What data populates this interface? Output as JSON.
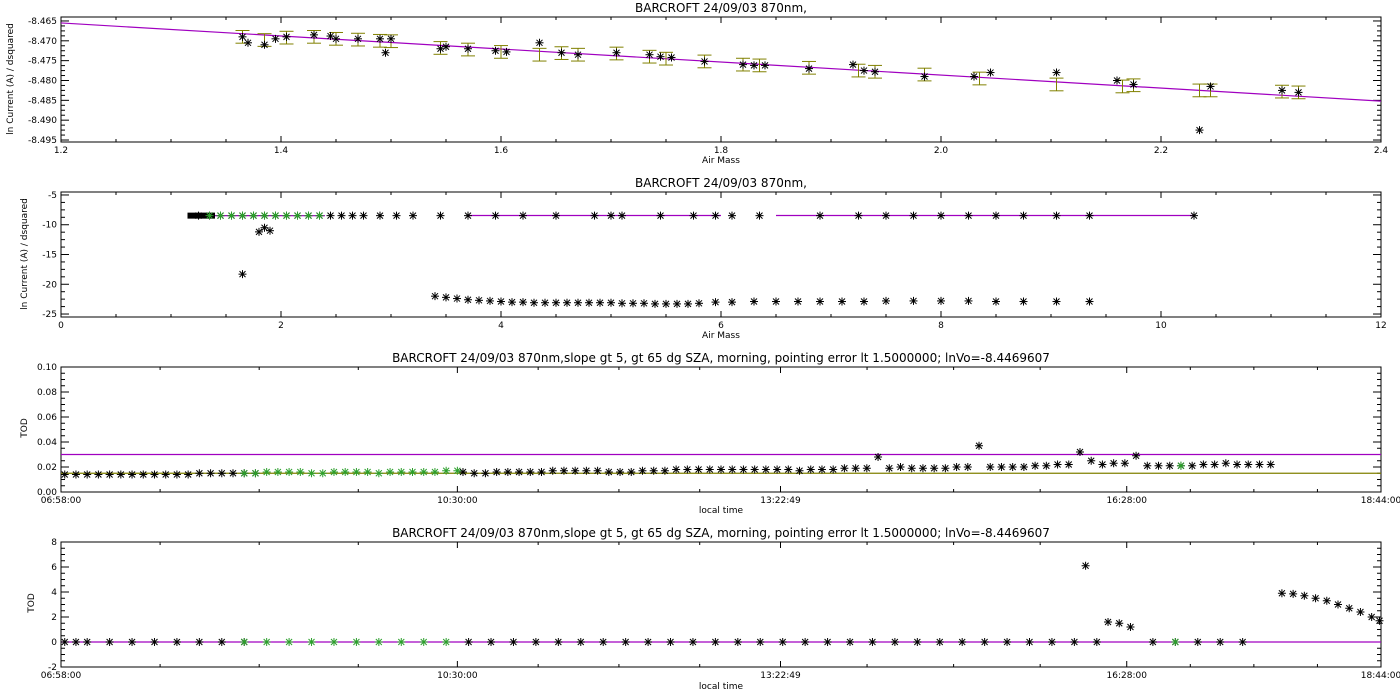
{
  "colors": {
    "fit_line": "#a000c0",
    "error_bars": "#808000",
    "markers": "#000000",
    "selected_markers": "#2ca02c",
    "clear_line": "#808000"
  },
  "chart_data": [
    {
      "type": "scatter",
      "title": "BARCROFT 24/09/03 870nm,",
      "xlabel": "Air Mass",
      "ylabel": "ln Current (A) / dsquared",
      "xlim": [
        1.2,
        2.4
      ],
      "ylim": [
        -8.4955,
        -8.464
      ],
      "xticks": [
        1.2,
        1.4,
        1.6,
        1.8,
        2.0,
        2.2,
        2.4
      ],
      "xtick_labels": [
        "1.2",
        "1.4",
        "1.6",
        "1.8",
        "2.0",
        "2.2",
        "2.4"
      ],
      "yticks": [
        -8.495,
        -8.49,
        -8.485,
        -8.48,
        -8.475,
        -8.47,
        -8.465
      ],
      "ytick_labels": [
        "-8.495",
        "-8.490",
        "-8.485",
        "-8.480",
        "-8.475",
        "-8.470",
        "-8.465"
      ],
      "fit_line": {
        "x": [
          1.2,
          2.4
        ],
        "y": [
          -8.4655,
          -8.4852
        ]
      },
      "error_bar_halfwidth": 0.0016,
      "points": {
        "x": [
          1.365,
          1.37,
          1.385,
          1.395,
          1.405,
          1.43,
          1.445,
          1.45,
          1.47,
          1.49,
          1.495,
          1.5,
          1.545,
          1.55,
          1.57,
          1.595,
          1.605,
          1.635,
          1.655,
          1.67,
          1.705,
          1.735,
          1.745,
          1.755,
          1.785,
          1.82,
          1.83,
          1.84,
          1.88,
          1.92,
          1.93,
          1.94,
          1.985,
          2.03,
          2.045,
          2.105,
          2.16,
          2.175,
          2.235,
          2.245,
          2.31,
          2.325
        ],
        "y": [
          -8.469,
          -8.4705,
          -8.471,
          -8.4695,
          -8.469,
          -8.4685,
          -8.4688,
          -8.4695,
          -8.4695,
          -8.4695,
          -8.473,
          -8.4695,
          -8.472,
          -8.4715,
          -8.472,
          -8.4725,
          -8.4728,
          -8.4705,
          -8.473,
          -8.4735,
          -8.473,
          -8.4735,
          -8.474,
          -8.4742,
          -8.4752,
          -8.476,
          -8.4762,
          -8.4762,
          -8.477,
          -8.476,
          -8.4775,
          -8.4778,
          -8.479,
          -8.479,
          -8.478,
          -8.478,
          -8.48,
          -8.481,
          -8.4925,
          -8.4815,
          -8.4825,
          -8.483
        ],
        "error_x": [
          1.365,
          1.385,
          1.405,
          1.43,
          1.45,
          1.47,
          1.49,
          1.5,
          1.545,
          1.57,
          1.6,
          1.635,
          1.655,
          1.67,
          1.705,
          1.735,
          1.75,
          1.785,
          1.82,
          1.835,
          1.88,
          1.925,
          1.94,
          1.985,
          2.035,
          2.105,
          2.165,
          2.175,
          2.235,
          2.245,
          2.31,
          2.325
        ],
        "error_y": [
          -8.469,
          -8.4698,
          -8.4692,
          -8.469,
          -8.4695,
          -8.4697,
          -8.47,
          -8.4701,
          -8.4718,
          -8.4722,
          -8.4728,
          -8.4735,
          -8.4731,
          -8.4735,
          -8.4732,
          -8.474,
          -8.4745,
          -8.4752,
          -8.476,
          -8.4762,
          -8.4768,
          -8.4775,
          -8.4778,
          -8.4785,
          -8.4795,
          -8.481,
          -8.4815,
          -8.4812,
          -8.4825,
          -8.4825,
          -8.4828,
          -8.483
        ]
      }
    },
    {
      "type": "scatter",
      "title": "BARCROFT 24/09/03 870nm,",
      "xlabel": "Air Mass",
      "ylabel": "ln Current (A) / dsquared",
      "xlim": [
        0,
        12
      ],
      "ylim": [
        -25.5,
        -4.5
      ],
      "xticks": [
        0,
        2,
        4,
        6,
        8,
        10,
        12
      ],
      "xtick_labels": [
        "0",
        "2",
        "4",
        "6",
        "8",
        "10",
        "12"
      ],
      "yticks": [
        -25,
        -20,
        -15,
        -10,
        -5
      ],
      "ytick_labels": [
        "-25",
        "-20",
        "-15",
        "-10",
        "-5"
      ],
      "fit_lines": [
        {
          "x": [
            1.2,
            2.4
          ],
          "y": [
            -8.47,
            -8.48
          ]
        },
        {
          "x": [
            3.7,
            6.0
          ],
          "y": [
            -8.45,
            -8.45
          ]
        },
        {
          "x": [
            6.5,
            10.3
          ],
          "y": [
            -8.45,
            -8.45
          ]
        }
      ],
      "upper_branch": {
        "x": [
          1.25,
          1.35,
          1.45,
          1.55,
          1.65,
          1.75,
          1.85,
          1.95,
          2.05,
          2.15,
          2.25,
          2.35,
          2.45,
          2.55,
          2.65,
          2.75,
          2.9,
          3.05,
          3.2,
          3.45,
          3.7,
          3.95,
          4.2,
          4.5,
          4.85,
          5.0,
          5.1,
          5.45,
          5.75,
          5.95,
          6.1,
          6.35,
          6.9,
          7.25,
          7.5,
          7.75,
          8.0,
          8.25,
          8.5,
          8.75,
          9.05,
          9.35,
          10.3
        ],
        "y": [
          -8.47,
          -8.47,
          -8.47,
          -8.47,
          -8.47,
          -8.47,
          -8.47,
          -8.47,
          -8.47,
          -8.47,
          -8.47,
          -8.47,
          -8.47,
          -8.47,
          -8.47,
          -8.47,
          -8.47,
          -8.47,
          -8.47,
          -8.47,
          -8.47,
          -8.47,
          -8.47,
          -8.47,
          -8.47,
          -8.47,
          -8.47,
          -8.47,
          -8.47,
          -8.47,
          -8.47,
          -8.47,
          -8.47,
          -8.47,
          -8.47,
          -8.47,
          -8.47,
          -8.47,
          -8.47,
          -8.47,
          -8.47,
          -8.47,
          -8.47
        ]
      },
      "green_points": {
        "x": [
          1.35,
          1.45,
          1.55,
          1.65,
          1.75,
          1.85,
          1.95,
          2.05,
          2.15,
          2.25,
          2.35
        ],
        "y": [
          -8.47,
          -8.47,
          -8.47,
          -8.47,
          -8.47,
          -8.47,
          -8.47,
          -8.47,
          -8.47,
          -8.47,
          -8.47
        ]
      },
      "outliers": {
        "x": [
          1.65,
          1.8,
          1.85,
          1.9
        ],
        "y": [
          -18.3,
          -11.2,
          -10.5,
          -11.0
        ]
      },
      "lower_branch": {
        "x": [
          3.4,
          3.5,
          3.6,
          3.7,
          3.8,
          3.9,
          4.0,
          4.1,
          4.2,
          4.3,
          4.4,
          4.5,
          4.6,
          4.7,
          4.8,
          4.9,
          5.0,
          5.1,
          5.2,
          5.3,
          5.4,
          5.5,
          5.6,
          5.7,
          5.8,
          5.95,
          6.1,
          6.3,
          6.5,
          6.7,
          6.9,
          7.1,
          7.3,
          7.5,
          7.75,
          8.0,
          8.25,
          8.5,
          8.75,
          9.05,
          9.35
        ],
        "y": [
          -22.0,
          -22.2,
          -22.4,
          -22.6,
          -22.7,
          -22.8,
          -22.9,
          -23.0,
          -23.0,
          -23.1,
          -23.1,
          -23.1,
          -23.1,
          -23.1,
          -23.1,
          -23.1,
          -23.1,
          -23.2,
          -23.2,
          -23.2,
          -23.3,
          -23.3,
          -23.3,
          -23.3,
          -23.2,
          -23.0,
          -23.0,
          -22.9,
          -22.9,
          -22.9,
          -22.9,
          -22.9,
          -22.9,
          -22.8,
          -22.8,
          -22.8,
          -22.8,
          -22.9,
          -22.9,
          -22.9,
          -22.9
        ]
      }
    },
    {
      "type": "scatter",
      "title": "BARCROFT 24/09/03 870nm,slope gt 5, gt 65 dg SZA, morning, pointing error lt 1.5000000; lnVo=-8.4469607",
      "xlabel": "local time",
      "ylabel": "TOD",
      "xlim": [
        6.9667,
        18.7333
      ],
      "ylim": [
        0,
        0.1
      ],
      "xticks": [
        6.9667,
        10.5,
        13.3803,
        16.4667,
        18.7333
      ],
      "xtick_labels": [
        "06:58:00",
        "10:30:00",
        "13:22:49",
        "16:28:00",
        "18:44:00"
      ],
      "yticks": [
        0.0,
        0.02,
        0.04,
        0.06,
        0.08,
        0.1
      ],
      "ytick_labels": [
        "0.00",
        "0.02",
        "0.04",
        "0.06",
        "0.08",
        "0.10"
      ],
      "hlines": [
        {
          "y": 0.03,
          "color_key": "fit_line"
        },
        {
          "y": 0.015,
          "color_key": "clear_line"
        }
      ],
      "black_points": {
        "x": [
          7.0,
          7.1,
          7.2,
          7.3,
          7.4,
          7.5,
          7.6,
          7.7,
          7.8,
          7.9,
          8.0,
          8.1,
          8.2,
          8.3,
          8.4,
          8.5,
          8.6,
          8.7,
          10.55,
          10.65,
          10.75,
          10.85,
          10.95,
          11.05,
          11.15,
          11.25,
          11.35,
          11.45,
          11.55,
          11.65,
          11.75,
          11.85,
          11.95,
          12.05,
          12.15,
          12.25,
          12.35,
          12.45,
          12.55,
          12.65,
          12.75,
          12.85,
          12.95,
          13.05,
          13.15,
          13.25,
          13.35,
          13.45,
          13.55,
          13.65,
          13.75,
          13.85,
          13.95,
          14.05,
          14.15,
          14.25,
          14.35,
          14.45,
          14.55,
          14.65,
          14.75,
          14.85,
          14.95,
          15.05,
          15.15,
          15.25,
          15.35,
          15.45,
          15.55,
          15.65,
          15.75,
          15.85,
          15.95,
          16.05,
          16.15,
          16.25,
          16.35,
          16.45,
          16.55,
          16.65,
          16.75,
          16.85,
          16.95,
          17.05,
          17.15,
          17.25,
          17.35,
          17.45,
          17.55,
          17.65,
          17.75
        ],
        "y": [
          0.014,
          0.014,
          0.014,
          0.014,
          0.014,
          0.014,
          0.014,
          0.014,
          0.014,
          0.014,
          0.014,
          0.014,
          0.015,
          0.015,
          0.015,
          0.015,
          0.015,
          0.015,
          0.016,
          0.015,
          0.015,
          0.016,
          0.016,
          0.016,
          0.016,
          0.016,
          0.017,
          0.017,
          0.017,
          0.017,
          0.017,
          0.016,
          0.016,
          0.016,
          0.017,
          0.017,
          0.017,
          0.018,
          0.018,
          0.018,
          0.018,
          0.018,
          0.018,
          0.018,
          0.018,
          0.018,
          0.018,
          0.018,
          0.017,
          0.018,
          0.018,
          0.018,
          0.019,
          0.019,
          0.019,
          0.028,
          0.019,
          0.02,
          0.019,
          0.019,
          0.019,
          0.019,
          0.02,
          0.02,
          0.037,
          0.02,
          0.02,
          0.02,
          0.02,
          0.021,
          0.021,
          0.022,
          0.022,
          0.032,
          0.025,
          0.022,
          0.023,
          0.023,
          0.029,
          0.021,
          0.021,
          0.021,
          0.021,
          0.021,
          0.022,
          0.022,
          0.023,
          0.022,
          0.022,
          0.022,
          0.022
        ]
      },
      "green_points": {
        "x": [
          8.6,
          8.7,
          8.8,
          8.9,
          9.0,
          9.1,
          9.2,
          9.3,
          9.4,
          9.5,
          9.6,
          9.7,
          9.8,
          9.9,
          10.0,
          10.1,
          10.2,
          10.3,
          10.4,
          10.5,
          16.95
        ],
        "y": [
          0.015,
          0.015,
          0.016,
          0.016,
          0.016,
          0.016,
          0.015,
          0.015,
          0.016,
          0.016,
          0.016,
          0.016,
          0.015,
          0.016,
          0.016,
          0.016,
          0.016,
          0.016,
          0.017,
          0.017,
          0.021
        ]
      }
    },
    {
      "type": "scatter",
      "title": "BARCROFT 24/09/03 870nm,slope gt 5, gt 65 dg SZA, morning, pointing error lt 1.5000000; lnVo=-8.4469607",
      "xlabel": "local time",
      "ylabel": "TOD",
      "xlim": [
        6.9667,
        18.7333
      ],
      "ylim": [
        -2,
        8
      ],
      "xticks": [
        6.9667,
        10.5,
        13.3803,
        16.4667,
        18.7333
      ],
      "xtick_labels": [
        "06:58:00",
        "10:30:00",
        "13:22:49",
        "16:28:00",
        "18:44:00"
      ],
      "yticks": [
        -2,
        0,
        2,
        4,
        6,
        8
      ],
      "ytick_labels": [
        "-2",
        "0",
        "2",
        "4",
        "6",
        "8"
      ],
      "hlines": [
        {
          "y": 0,
          "color_key": "fit_line"
        }
      ],
      "black_points": {
        "x": [
          7.0,
          7.1,
          7.2,
          7.4,
          7.6,
          7.8,
          8.0,
          8.2,
          8.4,
          8.6,
          10.6,
          10.8,
          11.0,
          11.2,
          11.4,
          11.6,
          11.8,
          12.0,
          12.2,
          12.4,
          12.6,
          12.8,
          13.0,
          13.2,
          13.4,
          13.6,
          13.8,
          14.0,
          14.2,
          14.4,
          14.6,
          14.8,
          15.0,
          15.2,
          15.4,
          15.6,
          15.8,
          16.0,
          16.1,
          16.2,
          16.3,
          16.4,
          16.5,
          16.7,
          16.9,
          17.1,
          17.3,
          17.5
        ],
        "y": [
          0,
          0,
          0,
          0,
          0,
          0,
          0,
          0,
          0,
          0,
          0,
          0,
          0,
          0,
          0,
          0,
          0,
          0,
          0,
          0,
          0,
          0,
          0,
          0,
          0,
          0,
          0,
          0,
          0,
          0,
          0,
          0,
          0,
          0,
          0,
          0,
          0,
          0,
          6.1,
          0,
          1.6,
          1.5,
          1.2,
          0,
          0,
          0,
          0,
          0
        ]
      },
      "green_points": {
        "x": [
          8.6,
          8.8,
          9.0,
          9.2,
          9.4,
          9.6,
          9.8,
          10.0,
          10.2,
          10.4,
          16.9
        ],
        "y": [
          0,
          0,
          0,
          0,
          0,
          0,
          0,
          0,
          0,
          0,
          0
        ]
      },
      "evening_branch": {
        "x": [
          17.85,
          17.95,
          18.05,
          18.15,
          18.25,
          18.35,
          18.45,
          18.55,
          18.65,
          18.72
        ],
        "y": [
          3.9,
          3.85,
          3.7,
          3.5,
          3.3,
          3.0,
          2.7,
          2.4,
          2.0,
          1.7
        ]
      }
    }
  ]
}
